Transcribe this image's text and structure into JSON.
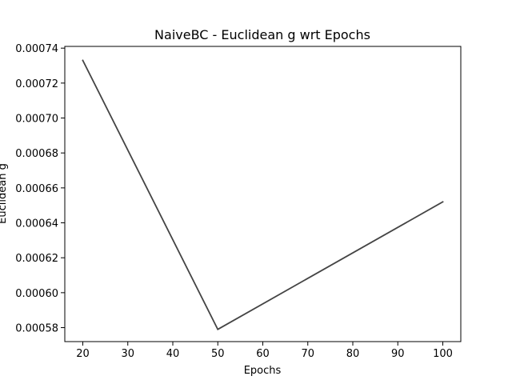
{
  "chart_data": {
    "type": "line",
    "title": "NaiveBC - Euclidean g wrt Epochs",
    "xlabel": "Epochs",
    "ylabel": "Euclidean g",
    "x": [
      20,
      50,
      100
    ],
    "series": [
      {
        "values": [
          0.000733,
          0.000579,
          0.000652
        ],
        "color": "#444444"
      }
    ],
    "xlim": [
      16,
      104
    ],
    "ylim": [
      0.000572,
      0.000741
    ],
    "xticks": [
      20,
      30,
      40,
      50,
      60,
      70,
      80,
      90,
      100
    ],
    "xtick_labels": [
      "20",
      "30",
      "40",
      "50",
      "60",
      "70",
      "80",
      "90",
      "100"
    ],
    "yticks": [
      0.00058,
      0.0006,
      0.00062,
      0.00064,
      0.00066,
      0.00068,
      0.0007,
      0.00072,
      0.00074
    ],
    "ytick_labels": [
      "0.00058",
      "0.00060",
      "0.00062",
      "0.00064",
      "0.00066",
      "0.00068",
      "0.00070",
      "0.00072",
      "0.00074"
    ],
    "grid": false,
    "legend": "none"
  }
}
